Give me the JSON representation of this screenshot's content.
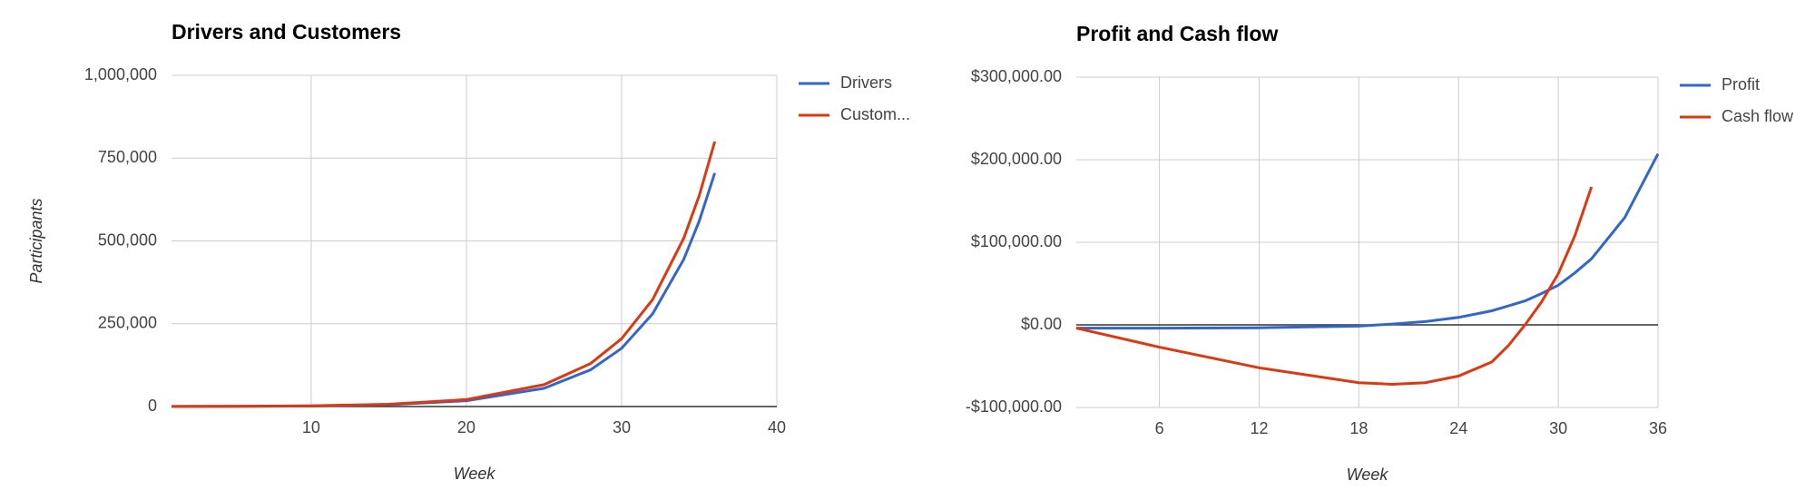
{
  "chart_data": [
    {
      "type": "line",
      "title": "Drivers and Customers",
      "x_label": "Week",
      "y_label": "Participants",
      "x": [
        1,
        5,
        10,
        15,
        20,
        25,
        28,
        30,
        32,
        34,
        35,
        36
      ],
      "series": [
        {
          "name": "Drivers",
          "color": "#3366cc",
          "values": [
            220,
            550,
            1700,
            5500,
            17500,
            55000,
            111000,
            176000,
            280000,
            444000,
            560000,
            705000
          ]
        },
        {
          "name": "Custom...",
          "color": "#dc3912",
          "values": [
            280,
            700,
            2200,
            6800,
            21000,
            66000,
            130000,
            205000,
            323000,
            508000,
            637000,
            800000
          ]
        }
      ],
      "xlim": [
        1,
        40
      ],
      "xticks": [
        10,
        20,
        30,
        40
      ],
      "ylim": [
        0,
        1000000
      ],
      "yticks": [
        0,
        {
          "value": 250000,
          "label": "250,000"
        },
        {
          "value": 500000,
          "label": "500,000"
        },
        {
          "value": 750000,
          "label": "750,000"
        },
        {
          "value": 1000000,
          "label": "1,000,000"
        }
      ],
      "grid": true,
      "legend": "right"
    },
    {
      "type": "line",
      "title": "Profit and Cash flow",
      "x_label": "Week",
      "x": [
        1,
        6,
        12,
        18,
        20,
        22,
        24,
        26,
        27,
        28,
        29,
        30,
        31,
        32,
        34,
        36
      ],
      "series": [
        {
          "name": "Profit",
          "color": "#3366cc",
          "values": [
            -4000,
            -4000,
            -3500,
            -1500,
            1000,
            4000,
            9000,
            17000,
            23000,
            29000,
            38000,
            48000,
            63000,
            80000,
            130000,
            207000
          ]
        },
        {
          "name": "Cash flow",
          "color": "#dc3912",
          "values": [
            -4000,
            -27000,
            -52000,
            -70000,
            -72000,
            -70000,
            -62000,
            -45000,
            -25000,
            0,
            28000,
            62000,
            108000,
            167000,
            null,
            null
          ]
        }
      ],
      "xlim": [
        1,
        36
      ],
      "xticks": [
        6,
        12,
        18,
        24,
        30,
        36
      ],
      "ylim": [
        -100000,
        300000
      ],
      "yticks": [
        {
          "value": -100000,
          "label": "-$100,000.00"
        },
        {
          "value": 0,
          "label": "$0.00"
        },
        {
          "value": 100000,
          "label": "$100,000.00"
        },
        {
          "value": 200000,
          "label": "$200,000.00"
        },
        {
          "value": 300000,
          "label": "$300,000.00"
        }
      ],
      "grid": true,
      "legend": "right"
    }
  ]
}
